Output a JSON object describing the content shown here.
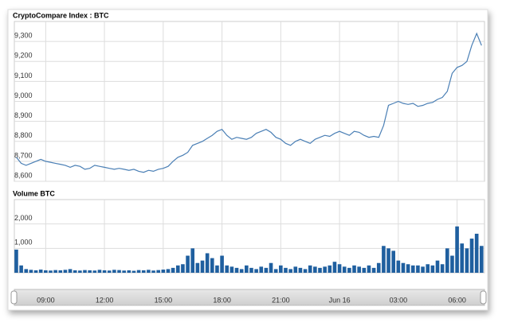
{
  "chart_data": [
    {
      "type": "line",
      "title": "CryptoCompare Index : BTC",
      "color": "#4a7fb5",
      "grid": true,
      "x": [
        7.5,
        7.75,
        8,
        8.25,
        8.5,
        8.75,
        9,
        9.25,
        9.5,
        9.75,
        10,
        10.25,
        10.5,
        10.75,
        11,
        11.25,
        11.5,
        11.75,
        12,
        12.25,
        12.5,
        12.75,
        13,
        13.25,
        13.5,
        13.75,
        14,
        14.25,
        14.5,
        14.75,
        15,
        15.25,
        15.5,
        15.75,
        16,
        16.25,
        16.5,
        16.75,
        17,
        17.25,
        17.5,
        17.75,
        18,
        18.25,
        18.5,
        18.75,
        19,
        19.25,
        19.5,
        19.75,
        20,
        20.25,
        20.5,
        20.75,
        21,
        21.25,
        21.5,
        21.75,
        22,
        22.25,
        22.5,
        22.75,
        23,
        23.25,
        23.5,
        23.75,
        24,
        24.25,
        24.5,
        24.75,
        25,
        25.25,
        25.5,
        25.75,
        26,
        26.25,
        26.5,
        26.75,
        27,
        27.25,
        27.5,
        27.75,
        28,
        28.25,
        28.5,
        28.75,
        29,
        29.25,
        29.5,
        29.75,
        30,
        30.25,
        30.5,
        30.75,
        31,
        31.25
      ],
      "values": [
        8720,
        8690,
        8680,
        8690,
        8700,
        8710,
        8700,
        8695,
        8690,
        8685,
        8680,
        8670,
        8680,
        8675,
        8660,
        8665,
        8680,
        8675,
        8670,
        8665,
        8660,
        8665,
        8660,
        8655,
        8660,
        8650,
        8645,
        8655,
        8650,
        8660,
        8665,
        8675,
        8700,
        8720,
        8730,
        8745,
        8780,
        8790,
        8800,
        8815,
        8830,
        8850,
        8860,
        8830,
        8810,
        8820,
        8815,
        8810,
        8820,
        8840,
        8850,
        8860,
        8845,
        8820,
        8810,
        8790,
        8780,
        8800,
        8810,
        8800,
        8790,
        8810,
        8820,
        8830,
        8825,
        8840,
        8850,
        8840,
        8830,
        8850,
        8845,
        8830,
        8820,
        8825,
        8820,
        8880,
        8980,
        8990,
        9000,
        8990,
        8985,
        8990,
        8975,
        8980,
        8990,
        8995,
        9010,
        9020,
        9050,
        9140,
        9170,
        9180,
        9200,
        9280,
        9340,
        9280
      ],
      "xlim": [
        7.4,
        31.4
      ],
      "xticks": [
        {
          "value": 9,
          "label": "09:00"
        },
        {
          "value": 12,
          "label": "12:00"
        },
        {
          "value": 15,
          "label": "15:00"
        },
        {
          "value": 18,
          "label": "18:00"
        },
        {
          "value": 21,
          "label": "21:00"
        },
        {
          "value": 24,
          "label": "Jun 16"
        },
        {
          "value": 27,
          "label": "03:00"
        },
        {
          "value": 30,
          "label": "06:00"
        }
      ],
      "ylim": [
        8600,
        9400
      ],
      "yticks": [
        {
          "value": 8600,
          "label": "8,600"
        },
        {
          "value": 8700,
          "label": "8,700"
        },
        {
          "value": 8800,
          "label": "8,800"
        },
        {
          "value": 8900,
          "label": "8,900"
        },
        {
          "value": 9000,
          "label": "9,000"
        },
        {
          "value": 9100,
          "label": "9,100"
        },
        {
          "value": 9200,
          "label": "9,200"
        },
        {
          "value": 9300,
          "label": "9,300"
        }
      ]
    },
    {
      "type": "bar",
      "title": "Volume BTC",
      "color": "#1f5f9f",
      "grid": true,
      "x": [
        7.5,
        7.75,
        8,
        8.25,
        8.5,
        8.75,
        9,
        9.25,
        9.5,
        9.75,
        10,
        10.25,
        10.5,
        10.75,
        11,
        11.25,
        11.5,
        11.75,
        12,
        12.25,
        12.5,
        12.75,
        13,
        13.25,
        13.5,
        13.75,
        14,
        14.25,
        14.5,
        14.75,
        15,
        15.25,
        15.5,
        15.75,
        16,
        16.25,
        16.5,
        16.75,
        17,
        17.25,
        17.5,
        17.75,
        18,
        18.25,
        18.5,
        18.75,
        19,
        19.25,
        19.5,
        19.75,
        20,
        20.25,
        20.5,
        20.75,
        21,
        21.25,
        21.5,
        21.75,
        22,
        22.25,
        22.5,
        22.75,
        23,
        23.25,
        23.5,
        23.75,
        24,
        24.25,
        24.5,
        24.75,
        25,
        25.25,
        25.5,
        25.75,
        26,
        26.25,
        26.5,
        26.75,
        27,
        27.25,
        27.5,
        27.75,
        28,
        28.25,
        28.5,
        28.75,
        29,
        29.25,
        29.5,
        29.75,
        30,
        30.25,
        30.5,
        30.75,
        31,
        31.25
      ],
      "values": [
        950,
        300,
        150,
        120,
        100,
        130,
        100,
        90,
        110,
        100,
        120,
        150,
        100,
        90,
        110,
        100,
        90,
        120,
        100,
        90,
        120,
        110,
        90,
        100,
        80,
        110,
        100,
        120,
        90,
        110,
        130,
        150,
        200,
        300,
        350,
        700,
        1000,
        400,
        500,
        800,
        600,
        300,
        700,
        300,
        250,
        200,
        150,
        300,
        200,
        150,
        250,
        200,
        400,
        150,
        300,
        200,
        150,
        250,
        200,
        150,
        300,
        250,
        200,
        250,
        300,
        450,
        350,
        250,
        200,
        300,
        250,
        200,
        300,
        200,
        400,
        1100,
        1000,
        900,
        500,
        400,
        350,
        300,
        300,
        250,
        350,
        300,
        500,
        350,
        1000,
        700,
        1900,
        1200,
        1000,
        1400,
        1600,
        1100
      ],
      "xlim": [
        7.4,
        31.4
      ],
      "ylim": [
        0,
        3000
      ],
      "yticks": [
        {
          "value": 1000,
          "label": "1,000"
        },
        {
          "value": 2000,
          "label": "2,000"
        }
      ]
    }
  ]
}
